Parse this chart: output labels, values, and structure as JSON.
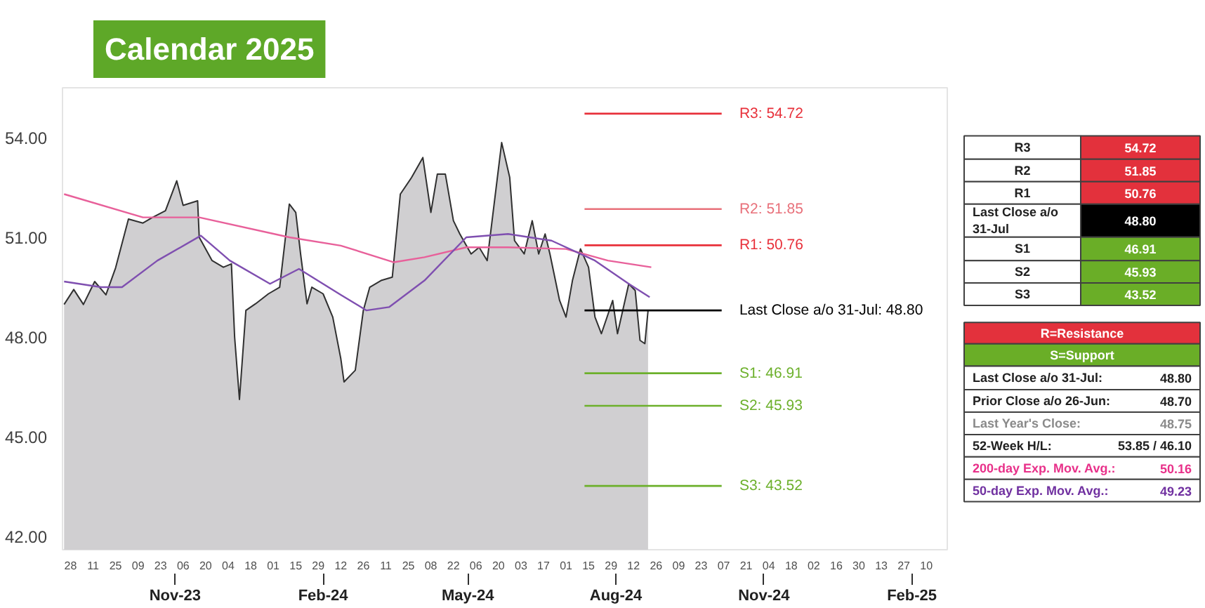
{
  "chart_data": [
    {
      "type": "area",
      "title": "Calendar 2025",
      "xlim": [
        "2023-08-23",
        "2025-02-23"
      ],
      "xticks": [
        {
          "value": "2023-08-28",
          "label": "28"
        },
        {
          "value": "2023-09-11",
          "label": "11"
        },
        {
          "value": "2023-09-25",
          "label": "25"
        },
        {
          "value": "2023-10-09",
          "label": "09"
        },
        {
          "value": "2023-10-23",
          "label": "23"
        },
        {
          "value": "2023-11-06",
          "label": "06"
        },
        {
          "value": "2023-11-20",
          "label": "20"
        },
        {
          "value": "2023-12-04",
          "label": "04"
        },
        {
          "value": "2023-12-18",
          "label": "18"
        },
        {
          "value": "2024-01-01",
          "label": "01"
        },
        {
          "value": "2024-01-15",
          "label": "15"
        },
        {
          "value": "2024-01-29",
          "label": "29"
        },
        {
          "value": "2024-02-12",
          "label": "12"
        },
        {
          "value": "2024-02-26",
          "label": "26"
        },
        {
          "value": "2024-03-11",
          "label": "11"
        },
        {
          "value": "2024-03-25",
          "label": "25"
        },
        {
          "value": "2024-04-08",
          "label": "08"
        },
        {
          "value": "2024-04-22",
          "label": "22"
        },
        {
          "value": "2024-05-06",
          "label": "06"
        },
        {
          "value": "2024-05-20",
          "label": "20"
        },
        {
          "value": "2024-06-03",
          "label": "03"
        },
        {
          "value": "2024-06-17",
          "label": "17"
        },
        {
          "value": "2024-07-01",
          "label": "01"
        },
        {
          "value": "2024-07-15",
          "label": "15"
        },
        {
          "value": "2024-07-29",
          "label": "29"
        },
        {
          "value": "2024-08-12",
          "label": "12"
        },
        {
          "value": "2024-08-26",
          "label": "26"
        },
        {
          "value": "2024-09-09",
          "label": "09"
        },
        {
          "value": "2024-09-23",
          "label": "23"
        },
        {
          "value": "2024-10-07",
          "label": "07"
        },
        {
          "value": "2024-10-21",
          "label": "21"
        },
        {
          "value": "2024-11-04",
          "label": "04"
        },
        {
          "value": "2024-11-18",
          "label": "18"
        },
        {
          "value": "2024-12-02",
          "label": "02"
        },
        {
          "value": "2024-12-16",
          "label": "16"
        },
        {
          "value": "2024-12-30",
          "label": "30"
        },
        {
          "value": "2025-01-13",
          "label": "13"
        },
        {
          "value": "2025-01-27",
          "label": "27"
        },
        {
          "value": "2025-02-10",
          "label": "10"
        }
      ],
      "x2lim": [
        "2023-08-23",
        "2025-02-23"
      ],
      "x2ticks": [
        {
          "value": "2023-11-01",
          "label": "Nov-23"
        },
        {
          "value": "2024-02-01",
          "label": "Feb-24"
        },
        {
          "value": "2024-05-01",
          "label": "May-24"
        },
        {
          "value": "2024-08-01",
          "label": "Aug-24"
        },
        {
          "value": "2024-11-01",
          "label": "Nov-24"
        },
        {
          "value": "2025-02-01",
          "label": "Feb-25"
        }
      ],
      "ylim": [
        41.6,
        55.5
      ],
      "yticks": [
        {
          "value": 42,
          "label": "42.00"
        },
        {
          "value": 45,
          "label": "45.00"
        },
        {
          "value": 48,
          "label": "48.00"
        },
        {
          "value": 51,
          "label": "51.00"
        },
        {
          "value": 54,
          "label": "54.00"
        }
      ],
      "grid": false,
      "series": [
        {
          "color": "#d0cfd1",
          "x": [
            "2023-08-24",
            "2023-08-30",
            "2023-09-05",
            "2023-09-12",
            "2023-09-19",
            "2023-09-25",
            "2023-10-03",
            "2023-10-12",
            "2023-10-18",
            "2023-10-26",
            "2023-11-02",
            "2023-11-06",
            "2023-11-15",
            "2023-11-16",
            "2023-11-24",
            "2023-12-01",
            "2023-12-06",
            "2023-12-08",
            "2023-12-11",
            "2023-12-15",
            "2023-12-21",
            "2023-12-29",
            "2024-01-05",
            "2024-01-11",
            "2024-01-15",
            "2024-01-18",
            "2024-01-22",
            "2024-01-25",
            "2024-02-01",
            "2024-02-07",
            "2024-02-12",
            "2024-02-14",
            "2024-02-21",
            "2024-02-26",
            "2024-03-01",
            "2024-03-08",
            "2024-03-15",
            "2024-03-20",
            "2024-03-27",
            "2024-04-03",
            "2024-04-08",
            "2024-04-12",
            "2024-04-17",
            "2024-04-22",
            "2024-04-26",
            "2024-05-03",
            "2024-05-08",
            "2024-05-13",
            "2024-05-22",
            "2024-05-27",
            "2024-05-30",
            "2024-06-05",
            "2024-06-10",
            "2024-06-14",
            "2024-06-18",
            "2024-06-21",
            "2024-06-27",
            "2024-07-01",
            "2024-07-05",
            "2024-07-10",
            "2024-07-15",
            "2024-07-19",
            "2024-07-23",
            "2024-07-30",
            "2024-08-02",
            "2024-08-09",
            "2024-08-13",
            "2024-08-16",
            "2024-08-19",
            "2024-08-21"
          ],
          "values": [
            48.98,
            49.43,
            48.98,
            49.67,
            49.27,
            50.08,
            51.55,
            51.43,
            51.6,
            51.8,
            52.7,
            51.96,
            52.1,
            51.0,
            50.3,
            50.1,
            50.2,
            48.0,
            46.12,
            48.8,
            49.0,
            49.3,
            49.5,
            52.0,
            51.75,
            50.5,
            49.0,
            49.5,
            49.3,
            48.6,
            47.35,
            46.65,
            47.0,
            48.8,
            49.5,
            49.7,
            49.8,
            52.3,
            52.8,
            53.4,
            51.75,
            52.9,
            52.9,
            51.5,
            51.1,
            50.5,
            50.7,
            50.3,
            53.85,
            52.8,
            50.9,
            50.5,
            51.5,
            50.5,
            51.1,
            50.5,
            49.1,
            48.6,
            49.7,
            50.65,
            50.1,
            48.6,
            48.1,
            49.1,
            48.1,
            49.6,
            49.4,
            47.9,
            47.8,
            48.8
          ]
        },
        {
          "type": "line",
          "color": "#e8609a",
          "x": [
            "2023-08-24",
            "2023-10-12",
            "2023-11-16",
            "2024-01-11",
            "2024-02-12",
            "2024-03-16",
            "2024-04-04",
            "2024-04-30",
            "2024-05-26",
            "2024-07-01",
            "2024-07-27",
            "2024-08-23"
          ],
          "values": [
            52.3,
            51.6,
            51.6,
            51.0,
            50.75,
            50.25,
            50.4,
            50.7,
            50.7,
            50.65,
            50.3,
            50.1
          ]
        },
        {
          "type": "line",
          "color": "#7f4fb0",
          "x": [
            "2023-08-24",
            "2023-09-16",
            "2023-09-29",
            "2023-10-21",
            "2023-11-17",
            "2023-12-05",
            "2023-12-30",
            "2024-01-17",
            "2024-02-12",
            "2024-02-28",
            "2024-03-13",
            "2024-04-04",
            "2024-04-30",
            "2024-05-26",
            "2024-06-22",
            "2024-07-19",
            "2024-08-09",
            "2024-08-22"
          ],
          "values": [
            49.67,
            49.5,
            49.5,
            50.3,
            51.05,
            50.3,
            49.6,
            50.05,
            49.27,
            48.8,
            48.9,
            49.7,
            51.0,
            51.1,
            50.9,
            50.3,
            49.6,
            49.2
          ]
        }
      ],
      "ref_lines": [
        {
          "axis": "y",
          "value": 54.72,
          "label": "R3: 54.72",
          "color": "#e8303a"
        },
        {
          "axis": "y",
          "value": 51.85,
          "label": "R2: 51.85",
          "color": "#e8707a"
        },
        {
          "axis": "y",
          "value": 50.76,
          "label": "R1: 50.76",
          "color": "#e8303a"
        },
        {
          "axis": "y",
          "value": 48.8,
          "label": "Last Close a/o 31-Jul: 48.80",
          "color": "#000000"
        },
        {
          "axis": "y",
          "value": 46.91,
          "label": "S1: 46.91",
          "color": "#6cb02b"
        },
        {
          "axis": "y",
          "value": 45.93,
          "label": "S2: 45.93",
          "color": "#6cb02b"
        },
        {
          "axis": "y",
          "value": 43.52,
          "label": "S3: 43.52",
          "color": "#6cb02b"
        }
      ]
    },
    {
      "type": "other",
      "annotations": [
        "R3",
        "54.72",
        "R2",
        "51.85",
        "R1",
        "50.76",
        "Last Close a/o 31-Jul",
        "48.80",
        "S1",
        "46.91",
        "S2",
        "45.93",
        "S3",
        "43.52",
        "R=Resistance",
        "S=Support",
        "Last Close a/o 31-Jul:",
        "48.80",
        "Prior Close a/o 26-Jun:",
        "48.70",
        "Last Year's Close:",
        "48.75",
        "52-Week H/L:",
        "53.85 / 46.10",
        "200-day Exp. Mov. Avg.:",
        "50.16",
        "50-day Exp. Mov. Avg.:",
        "49.23"
      ]
    }
  ]
}
